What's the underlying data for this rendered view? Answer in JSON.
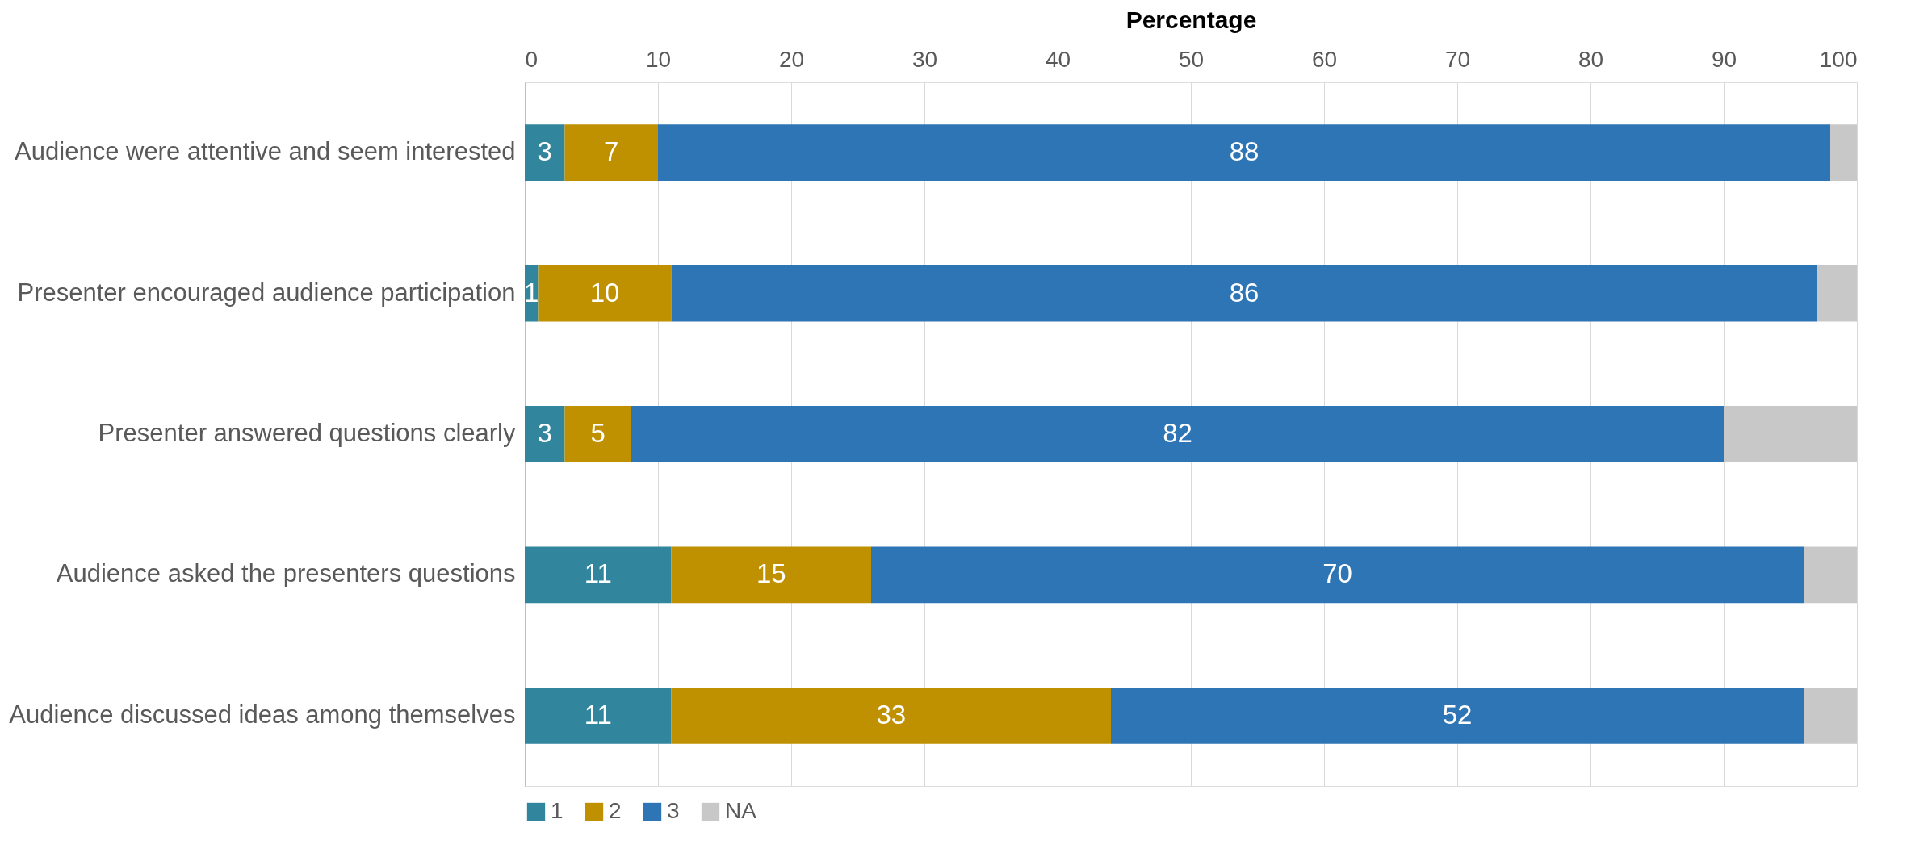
{
  "chart_data": {
    "type": "bar",
    "orientation": "horizontal",
    "stacked": true,
    "xlabel": "Percentage",
    "categories": [
      "Audience were attentive and seem interested",
      "Presenter encouraged audience participation",
      "Presenter answered questions clearly",
      "Audience asked the presenters questions",
      "Audience discussed ideas among themselves"
    ],
    "series": [
      {
        "name": "1",
        "color": "#31859c",
        "values": [
          3,
          1,
          3,
          11,
          11
        ],
        "value_labels": [
          "3",
          "1",
          "3",
          "11",
          "11"
        ]
      },
      {
        "name": "2",
        "color": "#bf9000",
        "values": [
          7,
          10,
          5,
          15,
          33
        ],
        "value_labels": [
          "7",
          "10",
          "5",
          "15",
          "33"
        ]
      },
      {
        "name": "3",
        "color": "#2e75b6",
        "values": [
          88,
          86,
          82,
          70,
          52
        ],
        "value_labels": [
          "88",
          "86",
          "82",
          "70",
          "52"
        ]
      },
      {
        "name": "NA",
        "color": "#c8c8c8",
        "values": [
          2,
          3,
          10,
          4,
          4
        ]
      }
    ],
    "xlim": [
      0,
      100
    ],
    "xticks": [
      0,
      10,
      20,
      30,
      40,
      50,
      60,
      70,
      80,
      90,
      100
    ],
    "grid": "x",
    "legend": "bottom"
  }
}
